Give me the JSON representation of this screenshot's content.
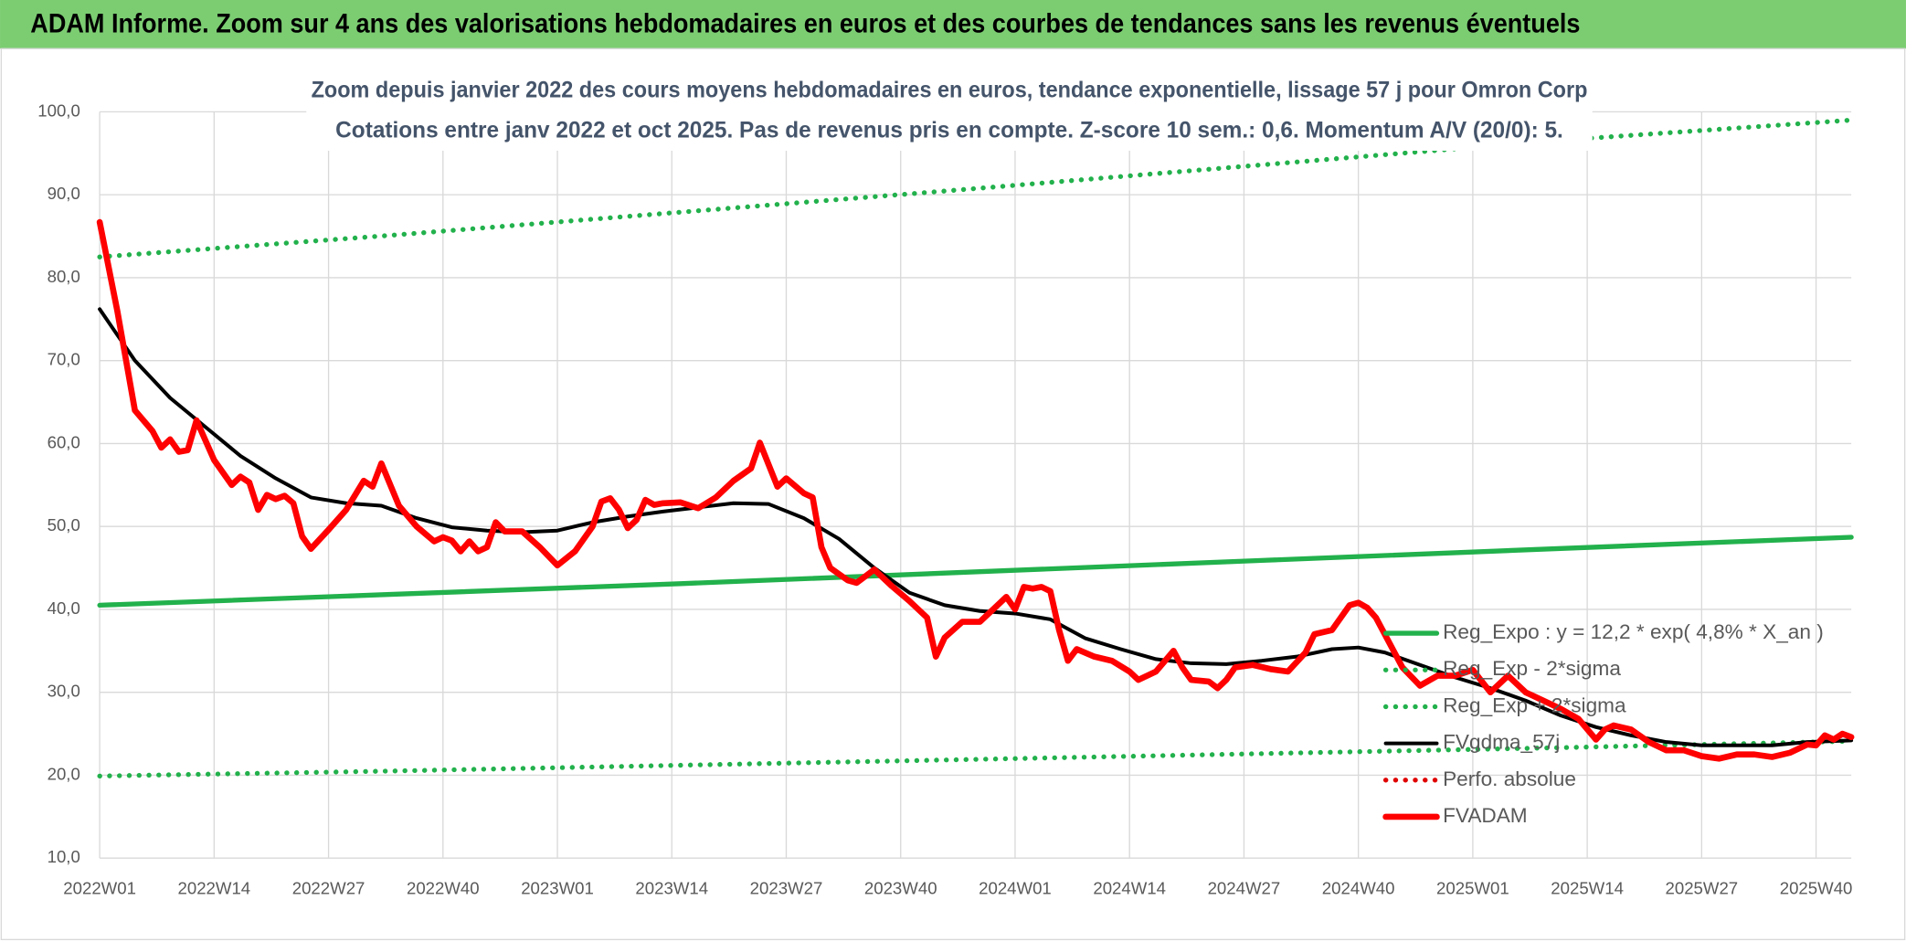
{
  "chart_data": {
    "type": "line",
    "title": "ADAM Informe. Zoom sur 4 ans des valorisations hebdomadaires en euros et des courbes de tendances sans les revenus éventuels",
    "subtitle": [
      "Zoom depuis janvier 2022 des cours moyens hebdomadaires en euros, tendance exponentielle, lissage 57 j pour Omron Corp",
      "Cotations entre janv 2022 et oct 2025. Pas de revenus pris en compte. Z-score 10 sem.: 0,6. Momentum A/V (20/0): 5."
    ],
    "xlim": [
      0,
      199
    ],
    "xticks": [
      {
        "value": 0,
        "label": "2022W01"
      },
      {
        "value": 13,
        "label": "2022W14"
      },
      {
        "value": 26,
        "label": "2022W27"
      },
      {
        "value": 39,
        "label": "2022W40"
      },
      {
        "value": 52,
        "label": "2023W01"
      },
      {
        "value": 65,
        "label": "2023W14"
      },
      {
        "value": 78,
        "label": "2023W27"
      },
      {
        "value": 91,
        "label": "2023W40"
      },
      {
        "value": 104,
        "label": "2024W01"
      },
      {
        "value": 117,
        "label": "2024W14"
      },
      {
        "value": 130,
        "label": "2024W27"
      },
      {
        "value": 143,
        "label": "2024W40"
      },
      {
        "value": 156,
        "label": "2025W01"
      },
      {
        "value": 169,
        "label": "2025W14"
      },
      {
        "value": 182,
        "label": "2025W27"
      },
      {
        "value": 195,
        "label": "2025W40"
      }
    ],
    "ylim": [
      10,
      100
    ],
    "yticks": [
      {
        "value": 10,
        "label": "10,0"
      },
      {
        "value": 20,
        "label": "20,0"
      },
      {
        "value": 30,
        "label": "30,0"
      },
      {
        "value": 40,
        "label": "40,0"
      },
      {
        "value": 50,
        "label": "50,0"
      },
      {
        "value": 60,
        "label": "60,0"
      },
      {
        "value": 70,
        "label": "70,0"
      },
      {
        "value": 80,
        "label": "80,0"
      },
      {
        "value": 90,
        "label": "90,0"
      },
      {
        "value": 100,
        "label": "100,0"
      }
    ],
    "grid": true,
    "legend": "right",
    "series": [
      {
        "name": "Reg_Expo : y = 12,2 * exp( 4,8% *  X_an )",
        "color": "#22b14c",
        "style": "solid",
        "x": [
          0,
          33,
          66,
          99,
          132,
          165,
          199
        ],
        "values": [
          40.5,
          41.8,
          43.1,
          44.5,
          45.9,
          47.3,
          48.7
        ]
      },
      {
        "name": "Reg_Exp - 2*sigma",
        "color": "#22b14c",
        "style": "dotted",
        "x": [
          0,
          33,
          66,
          99,
          132,
          165,
          199
        ],
        "values": [
          19.9,
          20.5,
          21.2,
          21.9,
          22.6,
          23.3,
          24.1
        ]
      },
      {
        "name": "Reg_Exp + 2*sigma",
        "color": "#22b14c",
        "style": "dotted",
        "x": [
          0,
          33,
          66,
          99,
          132,
          165,
          199
        ],
        "values": [
          82.5,
          85.1,
          87.9,
          90.7,
          93.6,
          96.5,
          99.0
        ]
      },
      {
        "name": "FVgdma_57j",
        "color": "#000000",
        "style": "solid",
        "x": [
          0,
          4,
          8,
          12,
          16,
          20,
          24,
          28,
          32,
          36,
          40,
          44,
          48,
          52,
          56,
          60,
          64,
          68,
          72,
          76,
          80,
          84,
          88,
          92,
          96,
          100,
          104,
          108,
          112,
          116,
          120,
          124,
          128,
          132,
          136,
          140,
          143,
          146,
          150,
          154,
          158,
          162,
          166,
          170,
          174,
          178,
          182,
          186,
          190,
          194,
          199
        ],
        "values": [
          76.2,
          70,
          65.5,
          62,
          58.5,
          55.8,
          53.5,
          52.8,
          52.5,
          51,
          49.9,
          49.5,
          49.3,
          49.5,
          50.5,
          51.2,
          51.8,
          52.3,
          52.8,
          52.7,
          51,
          48.5,
          45,
          42,
          40.5,
          39.8,
          39.5,
          38.8,
          36.5,
          35.2,
          34,
          33.5,
          33.4,
          33.8,
          34.3,
          35.2,
          35.4,
          34.8,
          33.3,
          31.8,
          30.5,
          29,
          27.2,
          25.8,
          24.8,
          24,
          23.6,
          23.6,
          23.6,
          24,
          24.2
        ]
      },
      {
        "name": "Perfo. absolue",
        "color": "#e00000",
        "style": "dotted",
        "x": [],
        "values": []
      },
      {
        "name": "FVADAM",
        "color": "#ff0000",
        "style": "thick",
        "x": [
          0,
          2,
          4,
          6,
          7,
          8,
          9,
          10,
          11,
          13,
          15,
          16,
          17,
          18,
          19,
          20,
          21,
          22,
          23,
          24,
          26,
          28,
          30,
          31,
          32,
          34,
          36,
          38,
          39,
          40,
          41,
          42,
          43,
          44,
          45,
          46,
          48,
          50,
          52,
          54,
          56,
          57,
          58,
          59,
          60,
          61,
          62,
          63,
          64,
          66,
          68,
          70,
          72,
          74,
          75,
          77,
          78,
          80,
          81,
          82,
          83,
          85,
          86,
          88,
          90,
          92,
          94,
          95,
          96,
          98,
          100,
          102,
          103,
          104,
          105,
          106,
          107,
          108,
          109,
          110,
          111,
          113,
          115,
          117,
          118,
          120,
          122,
          123,
          124,
          126,
          127,
          128,
          129,
          131,
          133,
          135,
          137,
          138,
          140,
          142,
          143,
          144,
          145,
          146,
          148,
          150,
          152,
          154,
          156,
          158,
          160,
          162,
          164,
          166,
          168,
          170,
          171,
          172,
          174,
          176,
          178,
          180,
          182,
          184,
          186,
          188,
          190,
          192,
          194,
          195,
          196,
          197,
          198,
          199
        ],
        "values": [
          86.7,
          76,
          64,
          61.5,
          59.5,
          60.5,
          59,
          59.2,
          62.8,
          58,
          55,
          56,
          55.3,
          52,
          53.8,
          53.3,
          53.7,
          52.8,
          48.8,
          47.3,
          49.6,
          52,
          55.5,
          54.8,
          57.6,
          52.5,
          50,
          48.2,
          48.7,
          48.3,
          47,
          48.2,
          47,
          47.5,
          50.5,
          49.4,
          49.4,
          47.5,
          45.3,
          47,
          50,
          53,
          53.4,
          52,
          49.8,
          50.8,
          53.2,
          52.6,
          52.8,
          52.9,
          52.2,
          53.5,
          55.5,
          57,
          60.1,
          54.8,
          55.8,
          54,
          53.5,
          47.5,
          45,
          43.5,
          43.2,
          44.8,
          42.8,
          41,
          39,
          34.3,
          36.6,
          38.5,
          38.5,
          40.5,
          41.5,
          40,
          42.7,
          42.5,
          42.7,
          42.2,
          37.5,
          33.8,
          35.2,
          34.3,
          33.8,
          32.5,
          31.5,
          32.5,
          35,
          33,
          31.5,
          31.3,
          30.5,
          31.5,
          33,
          33.3,
          32.8,
          32.5,
          34.8,
          37,
          37.5,
          40.5,
          40.8,
          40.2,
          39,
          37,
          33,
          30.8,
          32,
          32,
          32.7,
          30,
          32,
          30,
          29,
          28,
          26.8,
          24.3,
          25.5,
          26,
          25.5,
          24,
          23,
          23,
          22.3,
          22,
          22.5,
          22.5,
          22.2,
          22.7,
          23.7,
          23.6,
          24.8,
          24.3,
          25,
          24.6
        ]
      }
    ]
  }
}
